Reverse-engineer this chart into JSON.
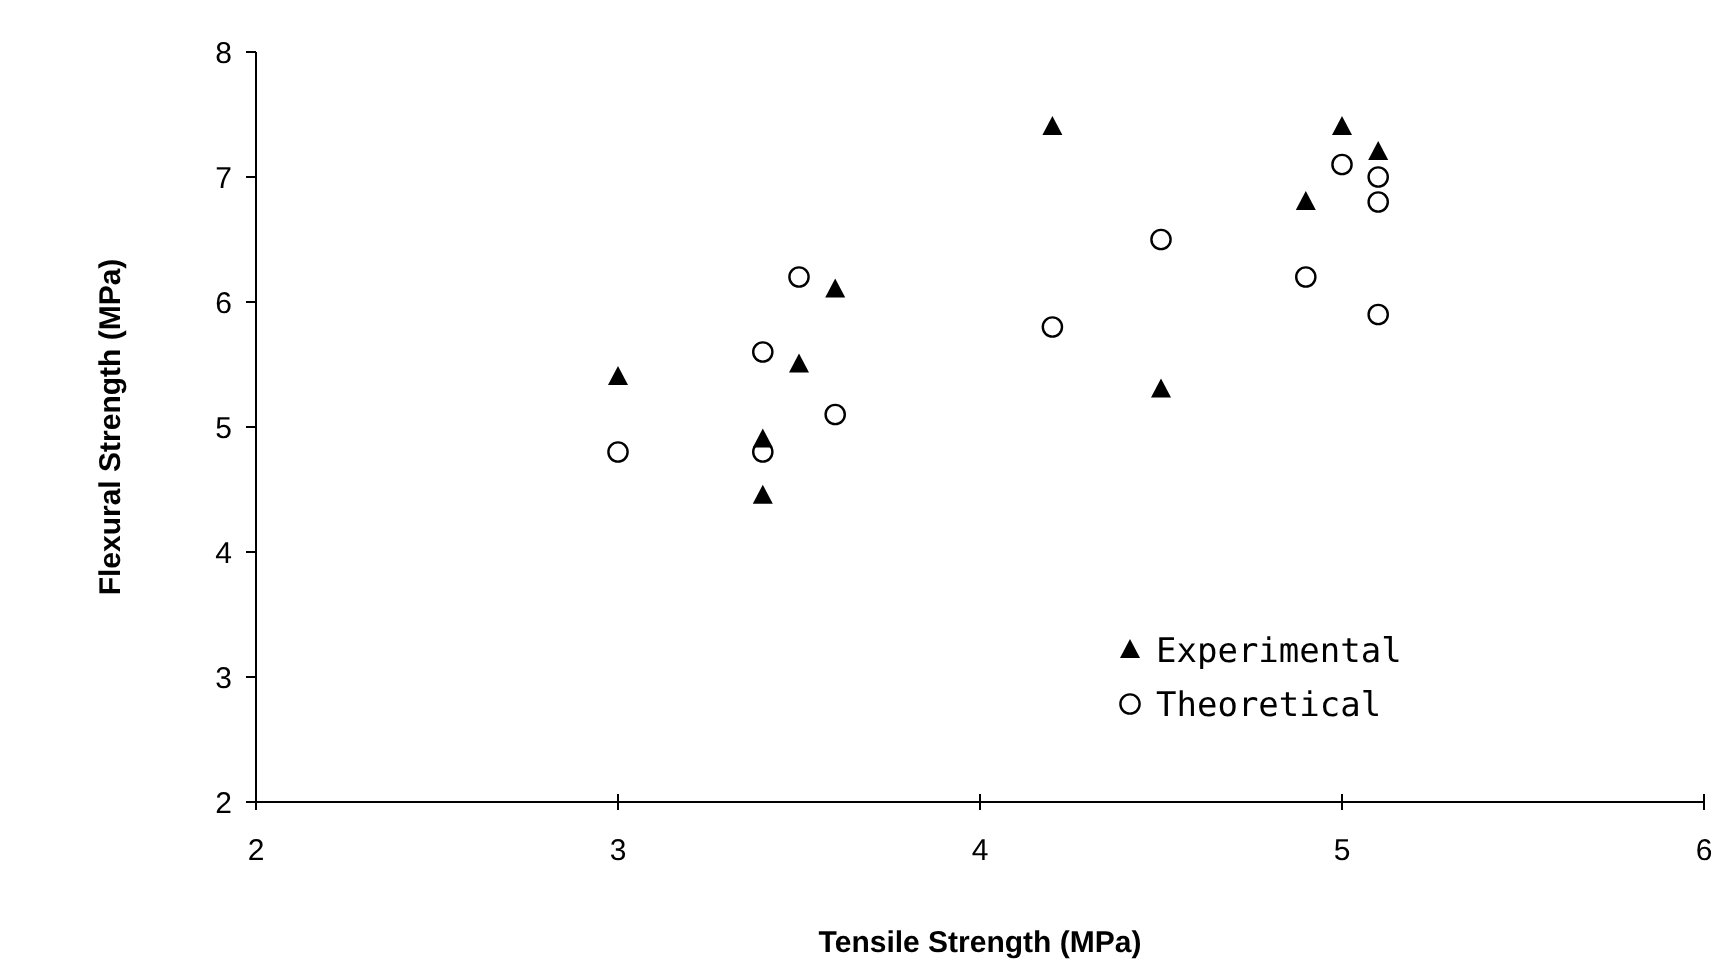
{
  "chart_data": {
    "type": "scatter",
    "xlabel": "Tensile Strength (MPa)",
    "ylabel": "Flexural Strength (MPa)",
    "xlim": [
      2,
      6
    ],
    "xticks": [
      2,
      3,
      4,
      5,
      6
    ],
    "ylim": [
      2,
      8
    ],
    "yticks": [
      2,
      3,
      4,
      5,
      6,
      7,
      8
    ],
    "grid": false,
    "legend": "bottom right",
    "series": [
      {
        "name": "Experimental",
        "color": "#000000",
        "marker": "triangle",
        "x": [
          3,
          3.4,
          3.4,
          3.5,
          3.6,
          4.2,
          4.5,
          4.9,
          5,
          5.1
        ],
        "values": [
          5.4,
          4.9,
          4.45,
          5.5,
          6.1,
          7.4,
          5.3,
          6.8,
          7.4,
          7.2
        ]
      },
      {
        "name": "Theoretical",
        "color": "#000000",
        "marker": "circle",
        "x": [
          3,
          3.4,
          3.4,
          3.5,
          3.6,
          4.2,
          4.5,
          4.9,
          5,
          5.1,
          5.1,
          5.1
        ],
        "values": [
          4.8,
          5.6,
          4.8,
          6.2,
          5.1,
          5.8,
          6.5,
          6.2,
          7.1,
          7.0,
          6.8,
          5.9
        ]
      }
    ]
  }
}
